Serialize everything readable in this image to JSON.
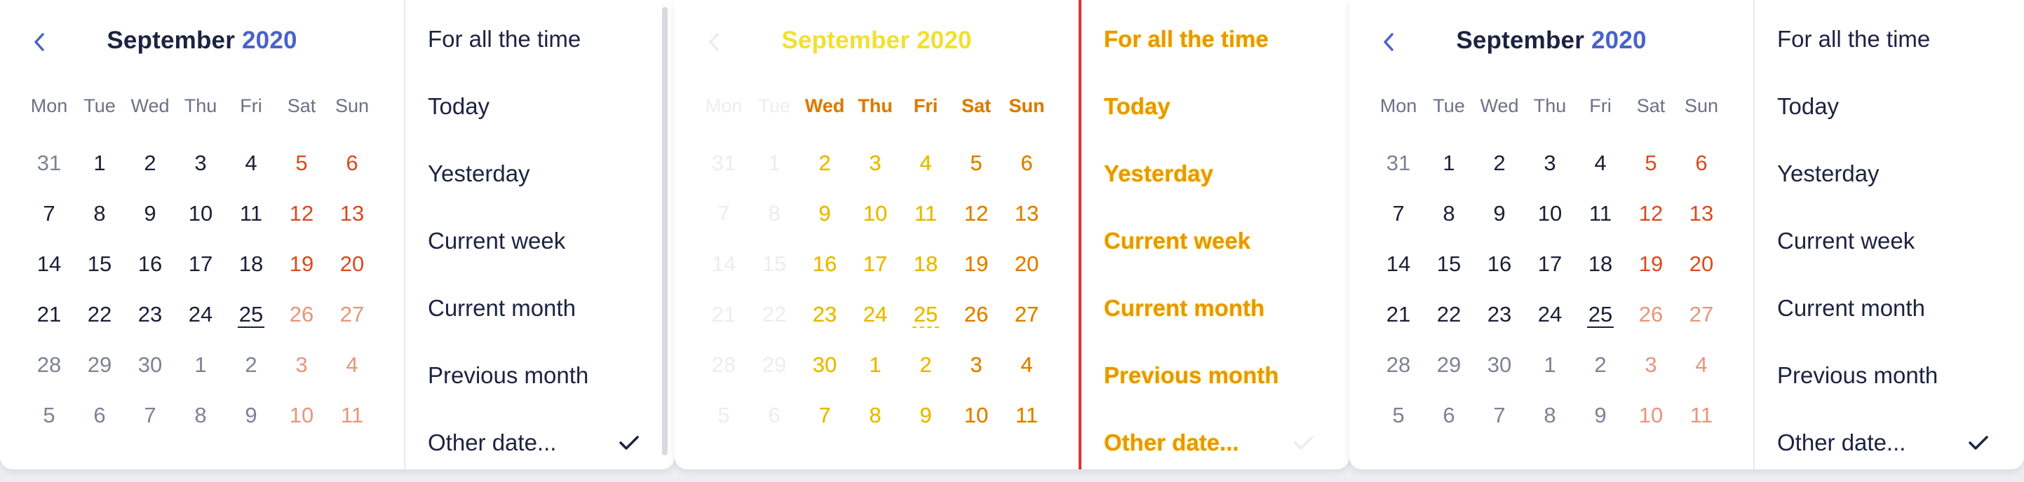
{
  "calendar": {
    "prev_icon": "chevron-left-icon",
    "month": "September",
    "year": "2020",
    "weekdays": [
      "Mon",
      "Tue",
      "Wed",
      "Thu",
      "Fri",
      "Sat",
      "Sun"
    ],
    "weeks": [
      [
        "31",
        "1",
        "2",
        "3",
        "4",
        "5",
        "6"
      ],
      [
        "7",
        "8",
        "9",
        "10",
        "11",
        "12",
        "13"
      ],
      [
        "14",
        "15",
        "16",
        "17",
        "18",
        "19",
        "20"
      ],
      [
        "21",
        "22",
        "23",
        "24",
        "25",
        "26",
        "27"
      ],
      [
        "28",
        "29",
        "30",
        "1",
        "2",
        "3",
        "4"
      ],
      [
        "5",
        "6",
        "7",
        "8",
        "9",
        "10",
        "11"
      ]
    ]
  },
  "options": [
    "For all the time",
    "Today",
    "Yesterday",
    "Current week",
    "Current month",
    "Previous month",
    "Other date..."
  ],
  "check_icon": "checkmark-icon",
  "colors": {
    "weekend": "#d94a1e",
    "accent": "#4a63c9",
    "highlight": "#f2e030",
    "divider_red": "#e53030"
  }
}
